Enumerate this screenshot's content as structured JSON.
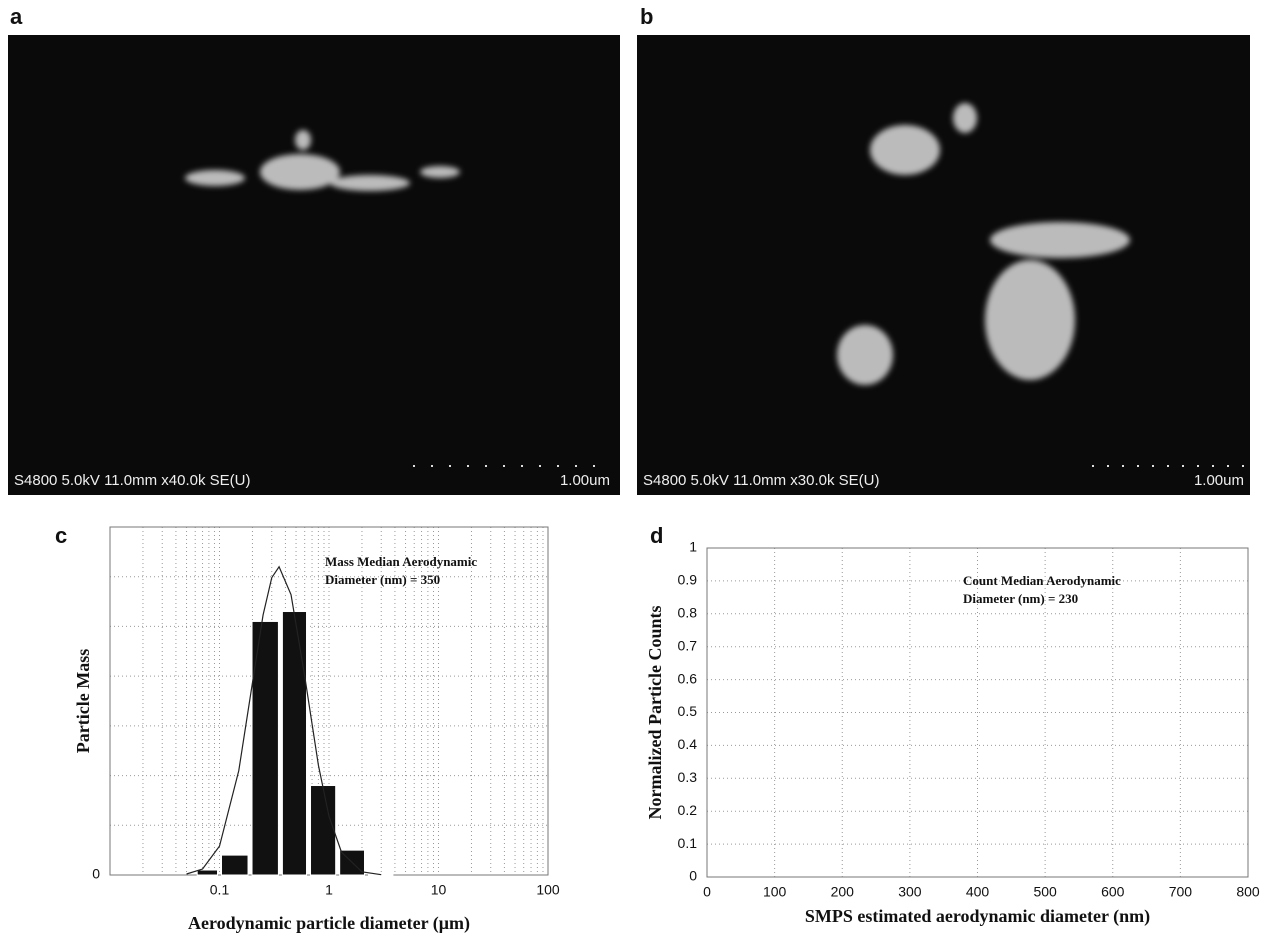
{
  "images": [
    {
      "label": "a",
      "caption": "S4800 5.0kV 11.0mm x40.0k SE(U)",
      "scale": "1.00um"
    },
    {
      "label": "b",
      "caption": "S4800 5.0kV 11.0mm x30.0k SE(U)",
      "scale": "1.00um"
    }
  ],
  "chart_data": [
    {
      "type": "histogram",
      "label": "c",
      "xlabel": "Aerodynamic particle diameter (μm)",
      "ylabel": "Particle Mass",
      "annotation": [
        "Mass Median Aerodynamic",
        "Diameter (nm) = 350"
      ],
      "xscale": "log",
      "xlim": [
        0.01,
        100
      ],
      "xticks": [
        0.1,
        1,
        10,
        100
      ],
      "ylim": [
        0,
        7
      ],
      "yticks": [
        0
      ],
      "grid": true,
      "color": "#111111",
      "bins": [
        0.06,
        0.1,
        0.19,
        0.36,
        0.65,
        1.2,
        2.2,
        4
      ],
      "counts": [
        0.1,
        0.4,
        5.1,
        5.3,
        1.8,
        0.5,
        0.02
      ],
      "curve": {
        "x": [
          0.05,
          0.07,
          0.1,
          0.15,
          0.2,
          0.25,
          0.3,
          0.35,
          0.45,
          0.6,
          0.8,
          1,
          1.3,
          2,
          3
        ],
        "values": [
          0.02,
          0.12,
          0.58,
          2.1,
          3.87,
          5.23,
          5.98,
          6.2,
          5.64,
          4.0,
          2.21,
          1.18,
          0.46,
          0.063,
          0.006
        ]
      }
    },
    {
      "type": "line",
      "label": "d",
      "xlabel": "SMPS estimated aerodynamic diameter (nm)",
      "ylabel": "Normalized Particle Counts",
      "annotation": [
        "Count Median Aerodynamic",
        "Diameter (nm) = 230"
      ],
      "xlim": [
        0,
        800
      ],
      "xticks": [
        0,
        100,
        200,
        300,
        400,
        500,
        600,
        700,
        800
      ],
      "ylim": [
        0,
        1
      ],
      "yticks": [
        0,
        0.1,
        0.2,
        0.3,
        0.4,
        0.5,
        0.6,
        0.7,
        0.8,
        0.9,
        1
      ],
      "grid": true,
      "series": []
    }
  ]
}
